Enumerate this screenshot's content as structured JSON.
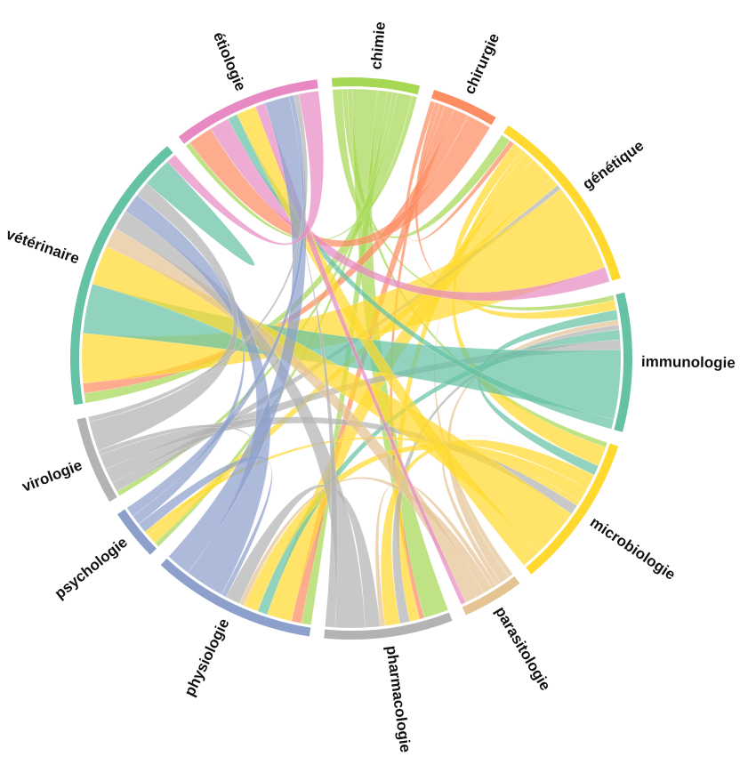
{
  "chart_data": {
    "type": "chord",
    "groups": [
      {
        "name": "chimie",
        "color": "#a6d854"
      },
      {
        "name": "chirurgie",
        "color": "#fc8d62"
      },
      {
        "name": "génétique",
        "color": "#ffd92f"
      },
      {
        "name": "immunologie",
        "color": "#66c2a5"
      },
      {
        "name": "microbiologie",
        "color": "#ffd92f"
      },
      {
        "name": "parasitologie",
        "color": "#e5c494"
      },
      {
        "name": "pharmacologie",
        "color": "#b3b3b3"
      },
      {
        "name": "physiologie",
        "color": "#8da0cb"
      },
      {
        "name": "psychologie",
        "color": "#8da0cb"
      },
      {
        "name": "virologie",
        "color": "#b3b3b3"
      },
      {
        "name": "vétérinaire",
        "color": "#66c2a5"
      },
      {
        "name": "étiologie",
        "color": "#e78ac3"
      }
    ],
    "matrix": [
      [
        0,
        0,
        2,
        1,
        1,
        0,
        5,
        2,
        1,
        1,
        3,
        1
      ],
      [
        0,
        0,
        1,
        1,
        0,
        0,
        1,
        2,
        0,
        0,
        3,
        5
      ],
      [
        2,
        1,
        0,
        2,
        1,
        0,
        2,
        5,
        2,
        1,
        18,
        3
      ],
      [
        1,
        0,
        2,
        0,
        2,
        1,
        1,
        2,
        0,
        2,
        14,
        2
      ],
      [
        1,
        0,
        4,
        2,
        0,
        0,
        3,
        3,
        1,
        2,
        10,
        4
      ],
      [
        0,
        0,
        1,
        2,
        1,
        0,
        1,
        2,
        0,
        0,
        4,
        1
      ],
      [
        5,
        1,
        2,
        2,
        3,
        1,
        0,
        3,
        0,
        0,
        6,
        2
      ],
      [
        2,
        2,
        5,
        2,
        3,
        1,
        3,
        0,
        1,
        0,
        8,
        5
      ],
      [
        1,
        0,
        2,
        0,
        1,
        0,
        0,
        2,
        0,
        0,
        2,
        2
      ],
      [
        1,
        0,
        2,
        3,
        3,
        0,
        0,
        1,
        0,
        0,
        6,
        1
      ],
      [
        2,
        2,
        10,
        10,
        8,
        4,
        4,
        4,
        0,
        3,
        6,
        2
      ],
      [
        1,
        5,
        4,
        2,
        4,
        2,
        0,
        5,
        1,
        1,
        4,
        0
      ]
    ]
  }
}
